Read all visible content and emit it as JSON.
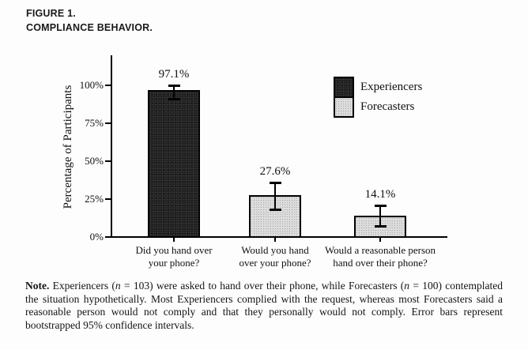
{
  "header": {
    "figure_number": "FIGURE 1.",
    "figure_title": "COMPLIANCE BEHAVIOR."
  },
  "chart_data": {
    "type": "bar",
    "title": "",
    "xlabel": "",
    "ylabel": "Percentage of Participants",
    "ylim": [
      0,
      100
    ],
    "grid": false,
    "legend_position": "upper-right",
    "yticks": [
      {
        "value": 0,
        "label": "0%"
      },
      {
        "value": 25,
        "label": "25%"
      },
      {
        "value": 50,
        "label": "50%"
      },
      {
        "value": 75,
        "label": "75%"
      },
      {
        "value": 100,
        "label": "100%"
      }
    ],
    "categories": [
      "Did you hand over your phone?",
      "Would you hand over your phone?",
      "Would a reasonable person hand over their phone?"
    ],
    "bars": [
      {
        "category_lines": [
          "Did you hand over",
          "your phone?"
        ],
        "value": 97.1,
        "label": "97.1%",
        "group": "experiencers",
        "ci_low": 91.0,
        "ci_high": 100.0
      },
      {
        "category_lines": [
          "Would you hand",
          "over your phone?"
        ],
        "value": 27.6,
        "label": "27.6%",
        "group": "forecasters",
        "ci_low": 18.2,
        "ci_high": 36.0
      },
      {
        "category_lines": [
          "Would a reasonable person",
          "hand over their phone?"
        ],
        "value": 14.1,
        "label": "14.1%",
        "group": "forecasters",
        "ci_low": 7.3,
        "ci_high": 20.8
      }
    ],
    "legend": [
      {
        "label": "Experiencers",
        "group": "experiencers"
      },
      {
        "label": "Forecasters",
        "group": "forecasters"
      }
    ],
    "colors": {
      "experiencers": "#242424",
      "forecasters": "#d9d9d9",
      "axis": "#000000",
      "text": "#111111"
    },
    "error_bars_note": "bootstrapped 95% confidence intervals"
  },
  "note": {
    "segments": [
      {
        "text": "Note.",
        "bold": true
      },
      {
        "text": " Experiencers ("
      },
      {
        "text": "n",
        "italic": true
      },
      {
        "text": " = 103) were asked to hand over their phone, while Forecasters ("
      },
      {
        "text": "n",
        "italic": true
      },
      {
        "text": " = 100) contemplated the situation hypothetically. Most Experiencers complied with the request, whereas most Forecasters said a reasonable person would not comply and that they personally would not comply. Error bars represent bootstrapped 95% confidence intervals."
      }
    ]
  }
}
